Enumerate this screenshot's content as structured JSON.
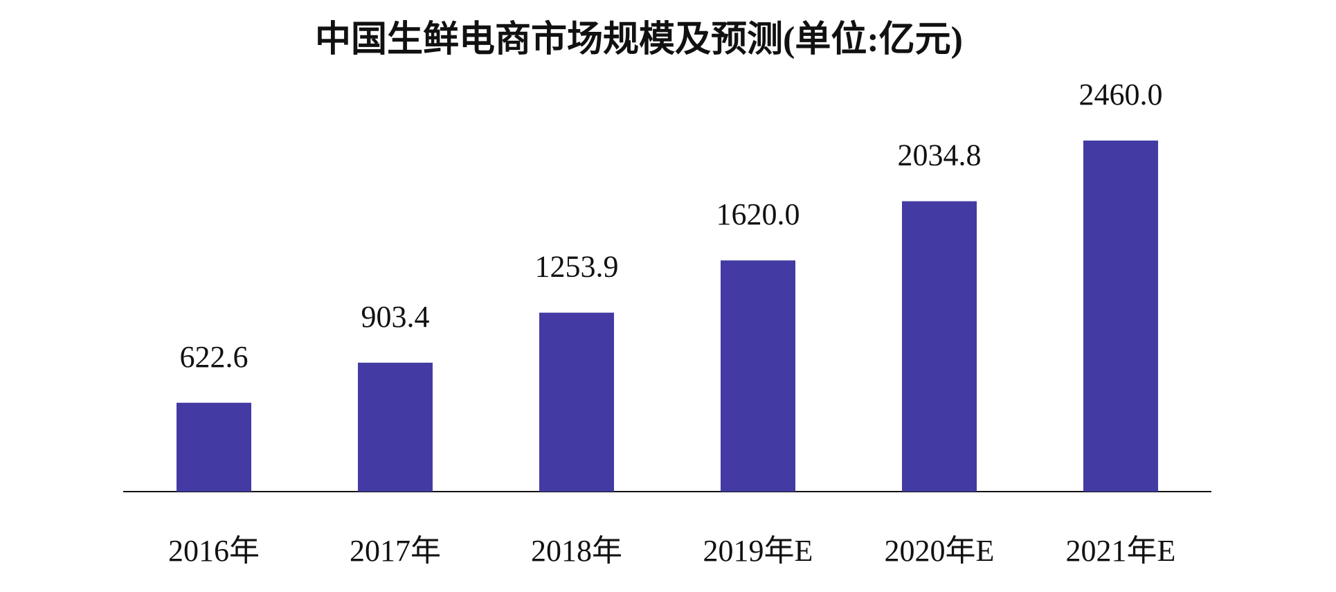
{
  "chart_data": {
    "type": "bar",
    "title": "中国生鲜电商市场规模及预测(单位:亿元)",
    "categories": [
      "2016年",
      "2017年",
      "2018年",
      "2019年E",
      "2020年E",
      "2021年E"
    ],
    "values": [
      622.6,
      903.4,
      1253.9,
      1620.0,
      2034.8,
      2460.0
    ],
    "value_labels": [
      "622.6",
      "903.4",
      "1253.9",
      "1620.0",
      "2034.8",
      "2460.0"
    ],
    "color": "#433aa3"
  }
}
